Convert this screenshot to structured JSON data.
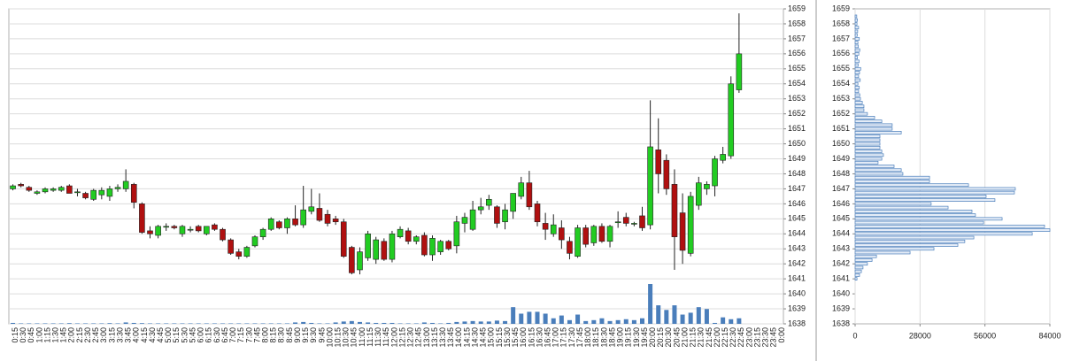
{
  "chart_data": [
    {
      "type": "candlestick",
      "categories": [
        "0:15",
        "0:30",
        "0:45",
        "1:00",
        "1:15",
        "1:30",
        "1:45",
        "2:00",
        "2:15",
        "2:30",
        "2:45",
        "3:00",
        "3:15",
        "3:30",
        "3:45",
        "4:00",
        "4:15",
        "4:30",
        "4:45",
        "5:00",
        "5:15",
        "5:30",
        "5:45",
        "6:00",
        "6:15",
        "6:30",
        "6:45",
        "7:00",
        "7:15",
        "7:30",
        "7:45",
        "8:00",
        "8:15",
        "8:30",
        "8:45",
        "9:00",
        "9:15",
        "9:30",
        "9:45",
        "10:00",
        "10:15",
        "10:30",
        "10:45",
        "11:00",
        "11:15",
        "11:30",
        "11:45",
        "12:00",
        "12:15",
        "12:30",
        "12:45",
        "13:00",
        "13:15",
        "13:30",
        "13:45",
        "14:00",
        "14:15",
        "14:30",
        "14:45",
        "15:00",
        "15:15",
        "15:30",
        "15:45",
        "16:00",
        "16:15",
        "16:30",
        "16:45",
        "17:00",
        "17:15",
        "17:30",
        "17:45",
        "18:00",
        "18:15",
        "18:30",
        "18:45",
        "19:00",
        "19:15",
        "19:30",
        "19:45",
        "20:00",
        "20:15",
        "20:30",
        "20:45",
        "21:00",
        "21:15",
        "21:30",
        "21:45",
        "22:00",
        "22:15",
        "22:30",
        "22:45",
        "23:00",
        "23:15",
        "23:30",
        "23:45",
        "0:00"
      ],
      "open": [
        1647.0,
        1647.3,
        1647.1,
        1646.7,
        1646.8,
        1646.9,
        1646.9,
        1647.2,
        1646.8,
        1646.7,
        1646.3,
        1646.6,
        1646.5,
        1647.0,
        1647.0,
        1647.3,
        1646.0,
        1644.2,
        1643.9,
        1644.5,
        1644.5,
        1644.0,
        1644.3,
        1644.5,
        1644.0,
        1644.6,
        1644.3,
        1643.6,
        1642.8,
        1642.5,
        1643.2,
        1643.8,
        1644.3,
        1644.8,
        1644.4,
        1645.0,
        1644.6,
        1645.5,
        1645.7,
        1645.3,
        1645.0,
        1644.8,
        1643.1,
        1641.6,
        1642.4,
        1642.3,
        1643.5,
        1642.3,
        1643.8,
        1644.2,
        1643.5,
        1643.9,
        1642.6,
        1642.8,
        1643.5,
        1643.2,
        1644.7,
        1644.3,
        1645.6,
        1645.9,
        1645.8,
        1644.8,
        1645.5,
        1646.5,
        1647.4,
        1646.0,
        1644.7,
        1644.0,
        1644.4,
        1643.5,
        1642.5,
        1644.4,
        1643.4,
        1644.5,
        1643.5,
        1644.8,
        1645.1,
        1644.7,
        1645.2,
        1644.6,
        1649.6,
        1648.9,
        1647.3,
        1645.4,
        1642.7,
        1645.9,
        1647.0,
        1647.2,
        1648.9,
        1649.2,
        1653.6,
        null,
        null,
        null,
        null,
        null
      ],
      "high": [
        1647.3,
        1647.4,
        1647.2,
        1646.9,
        1647.1,
        1647.1,
        1647.2,
        1647.3,
        1647.0,
        1646.8,
        1647.0,
        1647.1,
        1647.2,
        1647.3,
        1648.3,
        1647.4,
        1646.1,
        1644.5,
        1644.6,
        1644.7,
        1644.6,
        1644.6,
        1644.5,
        1644.6,
        1644.5,
        1644.7,
        1644.4,
        1643.7,
        1643.0,
        1643.2,
        1643.9,
        1644.4,
        1645.1,
        1644.9,
        1645.1,
        1645.9,
        1647.2,
        1647.0,
        1646.7,
        1645.6,
        1645.2,
        1645.0,
        1643.2,
        1643.1,
        1644.2,
        1643.8,
        1643.7,
        1644.2,
        1644.5,
        1644.4,
        1643.9,
        1644.1,
        1643.9,
        1643.6,
        1643.6,
        1645.2,
        1645.4,
        1646.2,
        1646.4,
        1646.6,
        1645.9,
        1646.0,
        1646.7,
        1647.8,
        1648.2,
        1646.2,
        1645.4,
        1645.3,
        1644.9,
        1643.8,
        1644.6,
        1644.6,
        1644.6,
        1644.7,
        1644.6,
        1645.5,
        1645.4,
        1644.8,
        1645.8,
        1652.9,
        1651.7,
        1649.3,
        1648.3,
        1646.7,
        1646.8,
        1647.8,
        1647.5,
        1649.2,
        1649.8,
        1654.5,
        1658.7,
        null,
        null,
        null,
        null,
        null
      ],
      "low": [
        1646.9,
        1647.1,
        1646.8,
        1646.6,
        1646.7,
        1646.8,
        1646.8,
        1646.7,
        1646.5,
        1646.3,
        1646.2,
        1646.3,
        1646.2,
        1646.8,
        1646.8,
        1645.7,
        1644.0,
        1643.7,
        1643.7,
        1644.2,
        1644.3,
        1643.8,
        1644.1,
        1644.1,
        1643.9,
        1644.2,
        1643.5,
        1642.6,
        1642.3,
        1642.4,
        1643.1,
        1643.6,
        1644.2,
        1644.3,
        1644.0,
        1644.5,
        1644.4,
        1645.3,
        1644.8,
        1644.5,
        1644.6,
        1642.4,
        1641.3,
        1641.3,
        1642.2,
        1642.0,
        1642.2,
        1642.1,
        1643.7,
        1643.3,
        1643.3,
        1642.5,
        1642.2,
        1642.6,
        1642.9,
        1642.7,
        1644.1,
        1644.2,
        1645.3,
        1645.6,
        1644.4,
        1644.3,
        1645.0,
        1646.3,
        1645.6,
        1644.5,
        1643.6,
        1643.8,
        1643.0,
        1642.3,
        1642.4,
        1643.1,
        1643.2,
        1643.4,
        1643.1,
        1644.4,
        1644.5,
        1644.5,
        1644.2,
        1644.3,
        1646.7,
        1646.6,
        1641.6,
        1642.0,
        1642.5,
        1645.6,
        1646.6,
        1646.5,
        1648.7,
        1649.0,
        1653.4,
        null,
        null,
        null,
        null,
        null
      ],
      "close": [
        1647.2,
        1647.2,
        1646.9,
        1646.8,
        1647.0,
        1647.0,
        1647.1,
        1646.7,
        1646.8,
        1646.4,
        1646.9,
        1646.9,
        1647.0,
        1647.1,
        1647.5,
        1646.1,
        1644.1,
        1644.0,
        1644.5,
        1644.5,
        1644.4,
        1644.5,
        1644.3,
        1644.2,
        1644.5,
        1644.3,
        1643.6,
        1642.7,
        1642.5,
        1643.1,
        1643.8,
        1644.3,
        1645.0,
        1644.4,
        1645.0,
        1644.6,
        1645.6,
        1645.8,
        1644.9,
        1644.7,
        1644.8,
        1642.5,
        1641.4,
        1642.8,
        1644.0,
        1643.6,
        1642.3,
        1644.0,
        1644.3,
        1643.5,
        1643.8,
        1642.6,
        1643.7,
        1643.5,
        1643.0,
        1644.8,
        1645.1,
        1645.6,
        1645.8,
        1646.3,
        1644.7,
        1645.6,
        1646.7,
        1647.4,
        1645.8,
        1644.8,
        1644.3,
        1644.6,
        1643.6,
        1642.7,
        1644.4,
        1643.3,
        1644.5,
        1643.5,
        1644.5,
        1644.8,
        1644.7,
        1644.7,
        1644.4,
        1649.8,
        1648.0,
        1647.0,
        1643.8,
        1642.9,
        1646.5,
        1647.4,
        1647.3,
        1649.0,
        1649.3,
        1654.0,
        1656.0,
        null,
        null,
        null,
        null,
        null
      ],
      "volume": [
        200,
        100,
        100,
        100,
        100,
        100,
        100,
        150,
        100,
        100,
        100,
        100,
        150,
        100,
        300,
        200,
        150,
        100,
        100,
        100,
        100,
        100,
        100,
        100,
        100,
        100,
        100,
        100,
        100,
        100,
        100,
        100,
        100,
        100,
        100,
        300,
        400,
        200,
        100,
        100,
        300,
        500,
        600,
        400,
        300,
        200,
        200,
        200,
        100,
        100,
        100,
        300,
        200,
        100,
        200,
        400,
        500,
        600,
        500,
        500,
        700,
        600,
        3600,
        2200,
        2600,
        2600,
        2200,
        1200,
        1800,
        800,
        2000,
        600,
        800,
        1200,
        600,
        800,
        1000,
        800,
        1200,
        8600,
        4000,
        3000,
        4000,
        2000,
        2400,
        3600,
        3200,
        200,
        1400,
        1000,
        1200,
        null,
        null,
        null,
        null,
        null
      ],
      "up_color": "#22cc22",
      "down_color": "#b01010",
      "volume_color": "#4a7ebb",
      "ylim": [
        1638,
        1659
      ],
      "yticks": [
        1638,
        1639,
        1640,
        1641,
        1642,
        1643,
        1644,
        1645,
        1646,
        1647,
        1648,
        1649,
        1650,
        1651,
        1652,
        1653,
        1654,
        1655,
        1656,
        1657,
        1658,
        1659
      ],
      "grid": true
    },
    {
      "type": "barh",
      "y": [
        1641,
        1641.25,
        1641.5,
        1641.75,
        1642,
        1642.25,
        1642.5,
        1642.75,
        1643,
        1643.25,
        1643.5,
        1643.75,
        1644,
        1644.25,
        1644.5,
        1644.75,
        1645,
        1645.25,
        1645.5,
        1645.75,
        1646,
        1646.25,
        1646.5,
        1646.75,
        1647,
        1647.25,
        1647.5,
        1647.75,
        1648,
        1648.25,
        1648.5,
        1648.75,
        1649,
        1649.25,
        1649.5,
        1649.75,
        1650,
        1650.25,
        1650.5,
        1650.75,
        1651,
        1651.25,
        1651.5,
        1651.75,
        1652,
        1652.25,
        1652.5,
        1652.75,
        1653,
        1653.25,
        1653.5,
        1653.75,
        1654,
        1654.25,
        1654.5,
        1654.75,
        1655,
        1655.25,
        1655.5,
        1655.75,
        1656,
        1656.25,
        1656.5,
        1656.75,
        1657,
        1657.25,
        1657.5,
        1657.75,
        1658,
        1658.25,
        1658.5
      ],
      "values": [
        800,
        1900,
        2700,
        3400,
        5300,
        7300,
        9200,
        23700,
        34000,
        44300,
        47300,
        51200,
        76400,
        84000,
        81700,
        55400,
        63400,
        51900,
        50400,
        40100,
        32800,
        60300,
        56500,
        68700,
        69100,
        48900,
        32100,
        32100,
        20600,
        19900,
        16800,
        9900,
        11500,
        12200,
        11500,
        10700,
        10700,
        10700,
        10700,
        19900,
        16000,
        16000,
        11500,
        8400,
        5300,
        3800,
        3800,
        3100,
        2300,
        2000,
        1500,
        1800,
        1200,
        2200,
        1500,
        1900,
        2400,
        1300,
        1700,
        1000,
        1600,
        2000,
        1400,
        1200,
        1800,
        900,
        1100,
        1500,
        800,
        1000,
        700
      ],
      "color": "#e4ecf7",
      "edge_color": "#4a7ebb",
      "xlim": [
        0,
        84000
      ],
      "xticks": [
        0,
        28000,
        56000,
        84000
      ],
      "ylim": [
        1638,
        1659
      ],
      "yticks": [
        1638,
        1639,
        1640,
        1641,
        1642,
        1643,
        1644,
        1645,
        1646,
        1647,
        1648,
        1649,
        1650,
        1651,
        1652,
        1653,
        1654,
        1655,
        1656,
        1657,
        1658,
        1659
      ],
      "grid": true
    }
  ]
}
